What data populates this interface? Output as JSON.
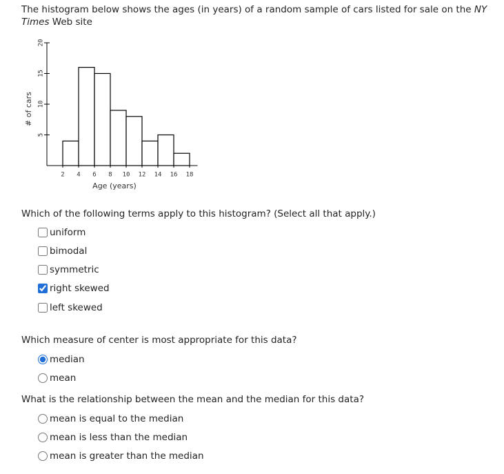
{
  "prompt": {
    "before": "The histogram below shows the ages (in years) of a random sample of cars listed for sale on the",
    "emphasis": "NY Times",
    "after": "Web site"
  },
  "chart_data": {
    "type": "histogram",
    "xlabel": "Age (years)",
    "ylabel": "# of cars",
    "bins": [
      2,
      4,
      6,
      8,
      10,
      12,
      14,
      16,
      18
    ],
    "values": [
      4,
      16,
      15,
      9,
      8,
      4,
      5,
      2
    ],
    "color": "#ffffff",
    "edgecolor": "#000000",
    "xlim": [
      0,
      19
    ],
    "xticks": [
      2,
      4,
      6,
      8,
      10,
      12,
      14,
      16,
      18
    ],
    "ylim": [
      0,
      20
    ],
    "yticks": [
      5,
      10,
      15,
      20
    ]
  },
  "questions": [
    {
      "text": "Which of the following terms apply to this histogram? (Select all that apply.)",
      "input": "checkbox",
      "options": [
        {
          "label": "uniform",
          "selected": false
        },
        {
          "label": "bimodal",
          "selected": false
        },
        {
          "label": "symmetric",
          "selected": false
        },
        {
          "label": "right skewed",
          "selected": true
        },
        {
          "label": "left skewed",
          "selected": false
        }
      ]
    },
    {
      "text": "Which measure of center is most appropriate for this data?",
      "input": "radio",
      "options": [
        {
          "label": "median",
          "selected": true
        },
        {
          "label": "mean",
          "selected": false
        }
      ]
    },
    {
      "text": "What is the relationship between the mean and the median for this data?",
      "input": "radio",
      "options": [
        {
          "label": "mean is equal to the median",
          "selected": false
        },
        {
          "label": "mean is less than the median",
          "selected": false
        },
        {
          "label": "mean is greater than the median",
          "selected": false
        }
      ]
    }
  ]
}
